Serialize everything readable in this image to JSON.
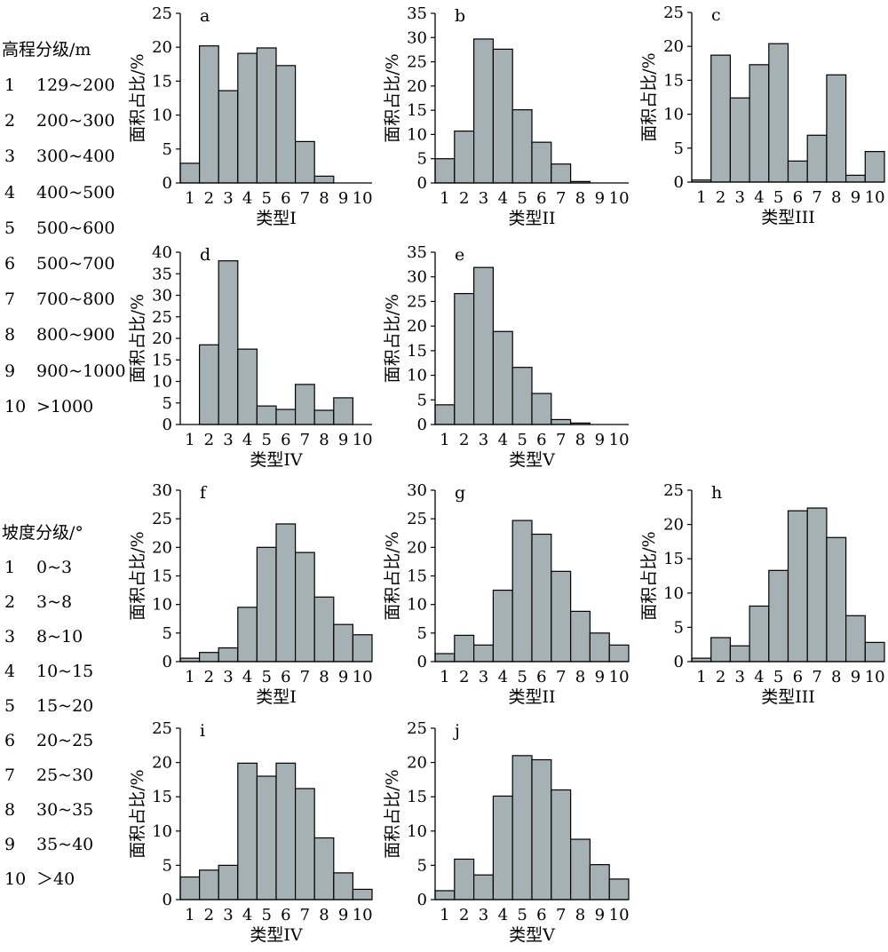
{
  "legend_elevation": {
    "title": "高程分级/m",
    "items": [
      {
        "num": "1",
        "label": "129~200"
      },
      {
        "num": "2",
        "label": "200~300"
      },
      {
        "num": "3",
        "label": "300~400"
      },
      {
        "num": "4",
        "label": "400~500"
      },
      {
        "num": "5",
        "label": "500~600"
      },
      {
        "num": "6",
        "label": "500~700"
      },
      {
        "num": "7",
        "label": "700~800"
      },
      {
        "num": "8",
        "label": "800~900"
      },
      {
        "num": "9",
        "label": "900~1000"
      },
      {
        "num": "10",
        "label": ">1000"
      }
    ]
  },
  "legend_slope": {
    "title": "坡度分级/°",
    "items": [
      {
        "num": "1",
        "label": "0~3"
      },
      {
        "num": "2",
        "label": "3~8"
      },
      {
        "num": "3",
        "label": "8~10"
      },
      {
        "num": "4",
        "label": "10~15"
      },
      {
        "num": "5",
        "label": "15~20"
      },
      {
        "num": "6",
        "label": "20~25"
      },
      {
        "num": "7",
        "label": "25~30"
      },
      {
        "num": "8",
        "label": "30~35"
      },
      {
        "num": "9",
        "label": "35~40"
      },
      {
        "num": "10",
        "label": "＞40"
      }
    ]
  },
  "colors": {
    "bar_fill": "#a5b1b4",
    "bar_stroke": "#000000",
    "axis": "#000000"
  },
  "chart_data": [
    {
      "id": "a",
      "type": "bar",
      "letter": "a",
      "xlabel": "类型I",
      "ylabel": "面积占比/%",
      "ylim": [
        0,
        25
      ],
      "yticks": [
        0,
        5,
        10,
        15,
        20,
        25
      ],
      "categories": [
        "1",
        "2",
        "3",
        "4",
        "5",
        "6",
        "7",
        "8",
        "9",
        "10"
      ],
      "values": [
        2.9,
        20.2,
        13.6,
        19.1,
        19.9,
        17.3,
        6.1,
        1.0,
        0,
        0
      ]
    },
    {
      "id": "b",
      "type": "bar",
      "letter": "b",
      "xlabel": "类型II",
      "ylabel": "面积占比/%",
      "ylim": [
        0,
        35
      ],
      "yticks": [
        0,
        5,
        10,
        15,
        20,
        25,
        30,
        35
      ],
      "categories": [
        "1",
        "2",
        "3",
        "4",
        "5",
        "6",
        "7",
        "8",
        "9",
        "10"
      ],
      "values": [
        5.0,
        10.7,
        29.7,
        27.6,
        15.1,
        8.4,
        3.9,
        0.3,
        0,
        0
      ]
    },
    {
      "id": "c",
      "type": "bar",
      "letter": "c",
      "xlabel": "类型III",
      "ylabel": "面积占比/%",
      "ylim": [
        0,
        25
      ],
      "yticks": [
        0,
        5,
        10,
        15,
        20,
        25
      ],
      "categories": [
        "1",
        "2",
        "3",
        "4",
        "5",
        "6",
        "7",
        "8",
        "9",
        "10"
      ],
      "values": [
        0.3,
        18.7,
        12.4,
        17.3,
        20.4,
        3.1,
        6.9,
        15.8,
        1.0,
        4.5
      ]
    },
    {
      "id": "d",
      "type": "bar",
      "letter": "d",
      "xlabel": "类型IV",
      "ylabel": "面积占比/%",
      "ylim": [
        0,
        40
      ],
      "yticks": [
        0,
        5,
        10,
        15,
        20,
        25,
        30,
        35,
        40
      ],
      "categories": [
        "1",
        "2",
        "3",
        "4",
        "5",
        "6",
        "7",
        "8",
        "9",
        "10"
      ],
      "values": [
        0,
        18.5,
        38.0,
        17.5,
        4.3,
        3.5,
        9.3,
        3.3,
        6.2,
        0
      ]
    },
    {
      "id": "e",
      "type": "bar",
      "letter": "e",
      "xlabel": "类型V",
      "ylabel": "面积占比/%",
      "ylim": [
        0,
        35
      ],
      "yticks": [
        0,
        5,
        10,
        15,
        20,
        25,
        30,
        35
      ],
      "categories": [
        "1",
        "2",
        "3",
        "4",
        "5",
        "6",
        "7",
        "8",
        "9",
        "10"
      ],
      "values": [
        4.0,
        26.6,
        31.9,
        18.9,
        11.6,
        6.3,
        1.0,
        0.3,
        0,
        0
      ]
    },
    {
      "id": "f",
      "type": "bar",
      "letter": "f",
      "xlabel": "类型I",
      "ylabel": "面积占比/%",
      "ylim": [
        0,
        30
      ],
      "yticks": [
        0,
        5,
        10,
        15,
        20,
        25,
        30
      ],
      "categories": [
        "1",
        "2",
        "3",
        "4",
        "5",
        "6",
        "7",
        "8",
        "9",
        "10"
      ],
      "values": [
        0.6,
        1.6,
        2.4,
        9.5,
        20.0,
        24.1,
        19.1,
        11.3,
        6.5,
        4.7
      ]
    },
    {
      "id": "g",
      "type": "bar",
      "letter": "g",
      "xlabel": "类型II",
      "ylabel": "面积占比/%",
      "ylim": [
        0,
        30
      ],
      "yticks": [
        0,
        5,
        10,
        15,
        20,
        25,
        30
      ],
      "categories": [
        "1",
        "2",
        "3",
        "4",
        "5",
        "6",
        "7",
        "8",
        "9",
        "10"
      ],
      "values": [
        1.4,
        4.6,
        2.9,
        12.5,
        24.7,
        22.3,
        15.8,
        8.8,
        5.0,
        2.9
      ]
    },
    {
      "id": "h",
      "type": "bar",
      "letter": "h",
      "xlabel": "类型III",
      "ylabel": "面积占比/%",
      "ylim": [
        0,
        25
      ],
      "yticks": [
        0,
        5,
        10,
        15,
        20,
        25
      ],
      "categories": [
        "1",
        "2",
        "3",
        "4",
        "5",
        "6",
        "7",
        "8",
        "9",
        "10"
      ],
      "values": [
        0.5,
        3.5,
        2.3,
        8.1,
        13.3,
        22.0,
        22.4,
        18.1,
        6.7,
        2.8
      ]
    },
    {
      "id": "i",
      "type": "bar",
      "letter": "i",
      "xlabel": "类型IV",
      "ylabel": "面积占比/%",
      "ylim": [
        0,
        25
      ],
      "yticks": [
        0,
        5,
        10,
        15,
        20,
        25
      ],
      "categories": [
        "1",
        "2",
        "3",
        "4",
        "5",
        "6",
        "7",
        "8",
        "9",
        "10"
      ],
      "values": [
        3.3,
        4.3,
        5.0,
        19.9,
        18.0,
        19.9,
        16.2,
        9.0,
        3.9,
        1.5
      ]
    },
    {
      "id": "j",
      "type": "bar",
      "letter": "j",
      "xlabel": "类型V",
      "ylabel": "面积占比/%",
      "ylim": [
        0,
        25
      ],
      "yticks": [
        0,
        5,
        10,
        15,
        20,
        25
      ],
      "categories": [
        "1",
        "2",
        "3",
        "4",
        "5",
        "6",
        "7",
        "8",
        "9",
        "10"
      ],
      "values": [
        1.3,
        5.9,
        3.6,
        15.1,
        21.0,
        20.4,
        16.0,
        8.8,
        5.1,
        3.0
      ]
    }
  ]
}
